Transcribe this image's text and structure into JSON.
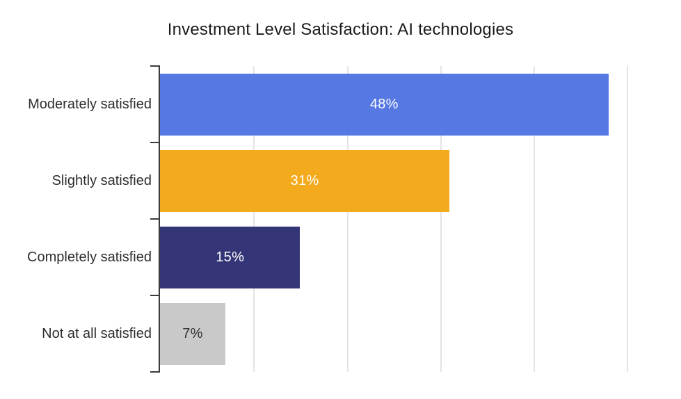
{
  "title": "Investment Level Satisfaction: AI technologies",
  "chart_data": {
    "type": "bar",
    "orientation": "horizontal",
    "title": "Investment Level Satisfaction: AI technologies",
    "categories": [
      "Moderately satisfied",
      "Slightly satisfied",
      "Completely satisfied",
      "Not at all satisfied"
    ],
    "values": [
      48,
      31,
      15,
      7
    ],
    "value_labels": [
      "48%",
      "31%",
      "15%",
      "7%"
    ],
    "bar_colors": [
      "#5678E2",
      "#F3AA1C",
      "#343577",
      "#C9C9C9"
    ],
    "value_label_colors": [
      "#ffffff",
      "#ffffff",
      "#ffffff",
      "#333333"
    ],
    "xlim": [
      0,
      55.7
    ],
    "gridlines_x": [
      10,
      20,
      30,
      40,
      50
    ],
    "grid": true,
    "legend": false,
    "xlabel": "",
    "ylabel": ""
  },
  "style": {
    "axis_color": "#3a3a3a",
    "gridline_color": "#e4e4e4",
    "title_color": "#1b1b1b",
    "label_color": "#2e2e2e",
    "background": "#ffffff"
  }
}
